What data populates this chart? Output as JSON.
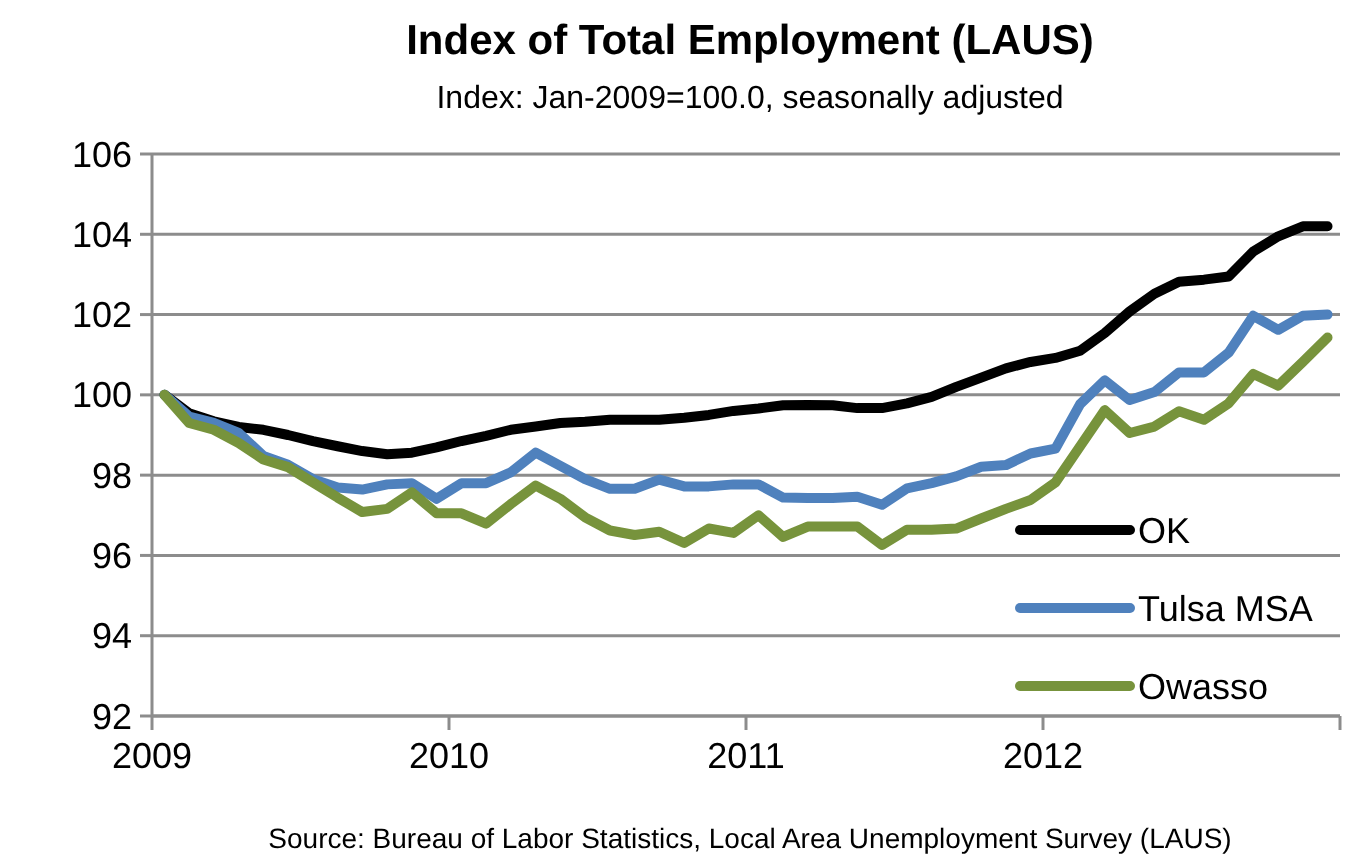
{
  "chart_data": {
    "type": "line",
    "title": "Index of Total Employment (LAUS)",
    "subtitle": "Index: Jan-2009=100.0, seasonally adjusted",
    "annotations": [
      "Source: Bureau of Labor Statistics, Local Area Unemployment Survey (LAUS)"
    ],
    "x": [
      2009.042,
      2009.125,
      2009.208,
      2009.292,
      2009.375,
      2009.458,
      2009.542,
      2009.625,
      2009.708,
      2009.792,
      2009.875,
      2009.958,
      2010.042,
      2010.125,
      2010.208,
      2010.292,
      2010.375,
      2010.458,
      2010.542,
      2010.625,
      2010.708,
      2010.792,
      2010.875,
      2010.958,
      2011.042,
      2011.125,
      2011.208,
      2011.292,
      2011.375,
      2011.458,
      2011.542,
      2011.625,
      2011.708,
      2011.792,
      2011.875,
      2011.958,
      2012.042,
      2012.125,
      2012.208,
      2012.292,
      2012.375,
      2012.458,
      2012.542,
      2012.625,
      2012.708,
      2012.792,
      2012.875,
      2012.958
    ],
    "series": [
      {
        "name": "OK",
        "color": "#000000",
        "values": [
          100,
          99.54,
          99.34,
          99.2,
          99.13,
          99.0,
          98.85,
          98.72,
          98.6,
          98.52,
          98.56,
          98.69,
          98.85,
          98.98,
          99.13,
          99.21,
          99.3,
          99.33,
          99.38,
          99.38,
          99.38,
          99.43,
          99.5,
          99.6,
          99.66,
          99.74,
          99.75,
          99.74,
          99.67,
          99.67,
          99.79,
          99.95,
          100.2,
          100.43,
          100.66,
          100.82,
          100.92,
          101.1,
          101.54,
          102.08,
          102.52,
          102.82,
          102.87,
          102.95,
          103.57,
          103.95,
          104.2,
          104.2
        ]
      },
      {
        "name": "Tulsa MSA",
        "color": "#4f81bd",
        "values": [
          100,
          99.46,
          99.3,
          99.05,
          98.48,
          98.26,
          97.9,
          97.69,
          97.64,
          97.77,
          97.8,
          97.41,
          97.8,
          97.8,
          98.07,
          98.56,
          98.23,
          97.9,
          97.66,
          97.66,
          97.89,
          97.72,
          97.72,
          97.77,
          97.77,
          97.44,
          97.43,
          97.43,
          97.46,
          97.26,
          97.67,
          97.8,
          97.97,
          98.21,
          98.25,
          98.54,
          98.66,
          99.77,
          100.36,
          99.87,
          100.07,
          100.56,
          100.56,
          101.05,
          101.97,
          101.62,
          101.97,
          102.0
        ]
      },
      {
        "name": "Owasso",
        "color": "#77933c",
        "values": [
          100,
          99.3,
          99.13,
          98.8,
          98.39,
          98.2,
          97.82,
          97.44,
          97.08,
          97.16,
          97.57,
          97.05,
          97.05,
          96.79,
          97.28,
          97.74,
          97.41,
          96.95,
          96.62,
          96.51,
          96.59,
          96.31,
          96.67,
          96.56,
          97.0,
          96.46,
          96.72,
          96.72,
          96.72,
          96.26,
          96.64,
          96.64,
          96.67,
          96.92,
          97.16,
          97.38,
          97.82,
          98.72,
          99.62,
          99.05,
          99.21,
          99.59,
          99.38,
          99.79,
          100.52,
          100.23,
          100.82,
          101.43
        ]
      }
    ],
    "xlim": [
      2009,
      2013
    ],
    "xticks": [
      2009,
      2010,
      2011,
      2012,
      {
        "value": 2013,
        "label": null
      }
    ],
    "ylim": [
      92,
      106
    ],
    "yticks": [
      92,
      94,
      96,
      98,
      100,
      102,
      104,
      106
    ],
    "grid": "y",
    "legend": "bottom right",
    "marker": "none",
    "line_style": "solid"
  }
}
